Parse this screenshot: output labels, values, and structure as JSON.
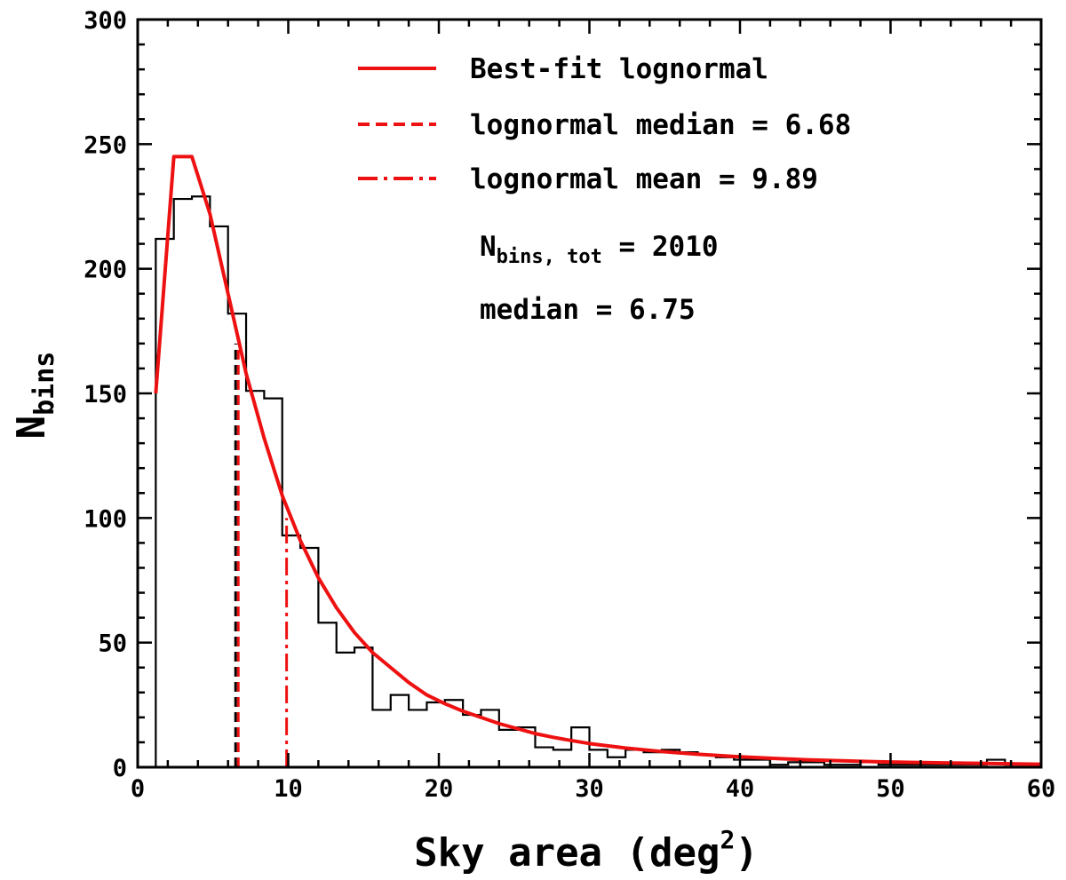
{
  "chart_data": {
    "type": "bar",
    "xlabel": "Sky area (deg",
    "xlabel_sup": "2",
    "xlabel_close": ")",
    "ylabel": "N",
    "ylabel_sub": "bins",
    "xlim": [
      0,
      60
    ],
    "ylim": [
      0,
      300
    ],
    "x_ticks": [
      "0",
      "10",
      "20",
      "30",
      "40",
      "50",
      "60"
    ],
    "y_ticks": [
      "0",
      "50",
      "100",
      "150",
      "200",
      "250",
      "300"
    ],
    "grid": false,
    "colors": {
      "histogram": "#000000",
      "fit": "#ee1111"
    },
    "histogram": {
      "name": "",
      "bin_edges": [
        1.2,
        2.4,
        3.6,
        4.8,
        6.0,
        7.2,
        8.4,
        9.6,
        10.8,
        12.0,
        13.2,
        14.4,
        15.6,
        16.8,
        18.0,
        19.2,
        20.4,
        21.6,
        22.8,
        24.0,
        25.2,
        26.4,
        27.6,
        28.8,
        30.0,
        31.2,
        32.4,
        33.6,
        34.8,
        36.0,
        37.2,
        38.4,
        39.6,
        40.8,
        42.0,
        43.2,
        44.4,
        45.6,
        46.8,
        48.0,
        49.2,
        50.4,
        51.6,
        52.8,
        54.0,
        55.2,
        56.4,
        57.6,
        58.8,
        60.0
      ],
      "counts": [
        212,
        228,
        229,
        217,
        182,
        151,
        148,
        93,
        88,
        58,
        46,
        48,
        23,
        29,
        23,
        26,
        27,
        21,
        23,
        15,
        16,
        8,
        7,
        16,
        7,
        4,
        7,
        6,
        7,
        6,
        5,
        4,
        3,
        3,
        1,
        2,
        2,
        1,
        1,
        2,
        1,
        1,
        1,
        1,
        1,
        1,
        3,
        1,
        1
      ]
    },
    "fit_curve": {
      "name": "Best-fit lognormal",
      "x": [
        1.2,
        2.4,
        3.6,
        4.8,
        6.0,
        7.2,
        8.4,
        9.6,
        10.8,
        12.0,
        13.2,
        14.4,
        15.6,
        16.8,
        18.0,
        19.2,
        20.4,
        21.6,
        22.8,
        24.0,
        25.2,
        26.4,
        27.6,
        28.8,
        30.0,
        32.4,
        34.8,
        37.2,
        39.6,
        42.0,
        44.4,
        46.8,
        49.2,
        51.6,
        54.0,
        56.4,
        58.8,
        60.0
      ],
      "y": [
        150,
        245,
        245,
        222,
        190,
        158,
        132,
        109,
        91,
        76,
        64,
        54,
        46,
        40,
        34,
        29,
        25.5,
        22.5,
        20,
        17.5,
        15.5,
        13.5,
        12,
        10.7,
        9.5,
        7.7,
        6.3,
        5.2,
        4.3,
        3.6,
        3.0,
        2.6,
        2.2,
        1.9,
        1.7,
        1.5,
        1.3,
        1.2
      ]
    },
    "lines": [
      {
        "name": "lognormal median = 6.68",
        "x": 6.68,
        "y_top": 170,
        "style": "dashed"
      },
      {
        "name": "lognormal mean = 9.89",
        "x": 9.89,
        "y_top": 100,
        "style": "dashdot"
      }
    ],
    "legend_position": "top-right",
    "annotations": {
      "nbins_prefix": "N",
      "nbins_sub": "bins, tot",
      "nbins_value": " = 2010",
      "median": "median = 6.75"
    }
  }
}
